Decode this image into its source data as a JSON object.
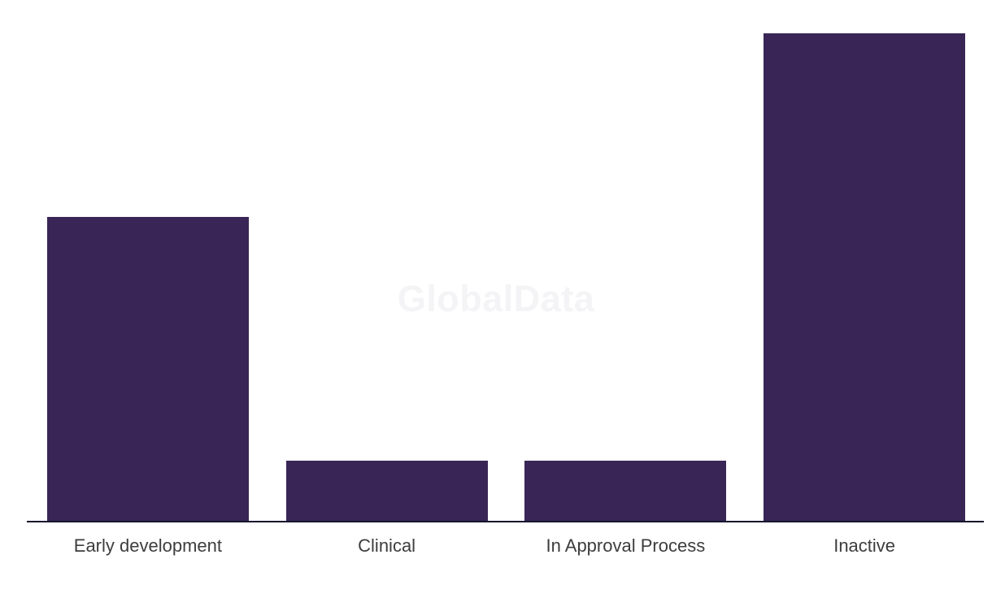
{
  "watermark": "GlobalData",
  "chart_data": {
    "type": "bar",
    "title": "",
    "xlabel": "",
    "ylabel": "",
    "categories": [
      "Early development",
      "Clinical",
      "In Approval Process",
      "Inactive"
    ],
    "values": [
      374,
      74,
      74,
      600
    ],
    "values_unit": "px bar height (no y-axis scale or data labels visible; relative ratio approx 5 : 1 : 1 : 8)",
    "ylim": [
      0,
      600
    ],
    "grid": false,
    "legend": false,
    "bar_color": "#392656",
    "axis_line_color": "#16162e",
    "label_color": "#3d3d3d",
    "watermark_color": "#f4f4f6",
    "background": "#ffffff"
  }
}
